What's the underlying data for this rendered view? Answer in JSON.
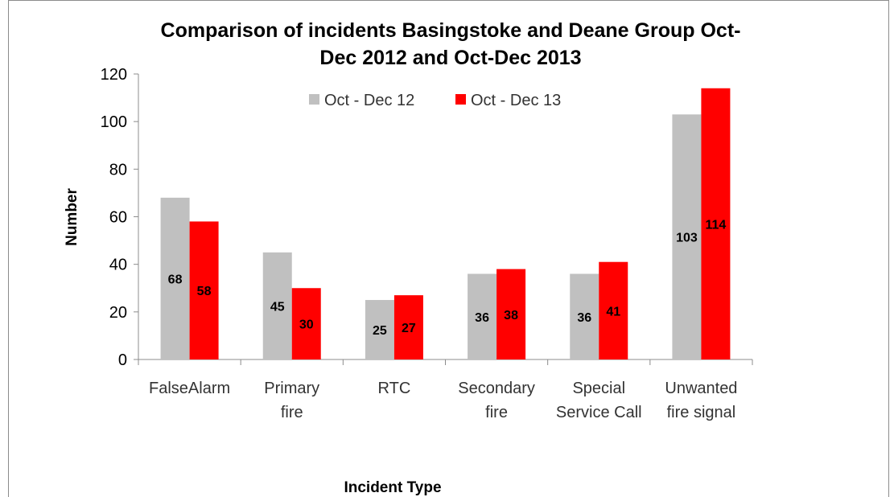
{
  "chart_data": {
    "type": "bar",
    "title": "Comparison of incidents Basingstoke and Deane Group Oct-Dec 2012 and Oct-Dec 2013",
    "title_lines": [
      "Comparison of incidents Basingstoke and Deane Group Oct-",
      "Dec 2012 and Oct-Dec 2013"
    ],
    "xlabel": "Incident Type",
    "ylabel": "Number",
    "ylim": [
      0,
      120
    ],
    "yticks": [
      0,
      20,
      40,
      60,
      80,
      100,
      120
    ],
    "categories": [
      "FalseAlarm",
      "Primary fire",
      "RTC",
      "Secondary fire",
      "Special Service Call",
      "Unwanted fire signal"
    ],
    "category_lines": [
      [
        "FalseAlarm"
      ],
      [
        "Primary",
        "fire"
      ],
      [
        "RTC"
      ],
      [
        "Secondary",
        "fire"
      ],
      [
        "Special",
        "Service Call"
      ],
      [
        "Unwanted",
        "fire signal"
      ]
    ],
    "series": [
      {
        "name": "Oct - Dec 12",
        "color": "#c0c0c0",
        "values": [
          68,
          45,
          25,
          36,
          36,
          103
        ]
      },
      {
        "name": "Oct - Dec 13",
        "color": "#ff0000",
        "values": [
          58,
          30,
          27,
          38,
          41,
          114
        ]
      }
    ],
    "legend_position": "top-center",
    "grid": false,
    "data_labels": true
  }
}
